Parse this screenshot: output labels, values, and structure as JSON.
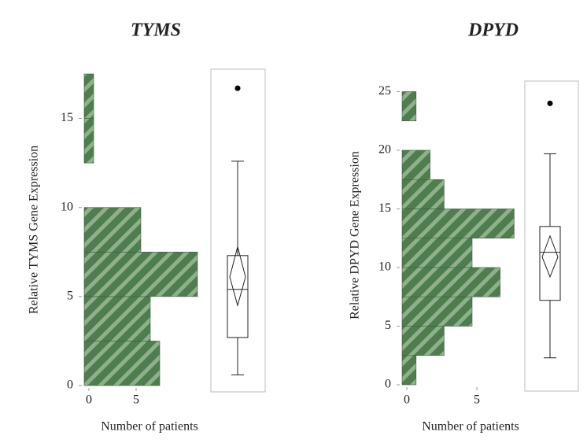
{
  "chart_data": [
    {
      "type": "histogram",
      "title": "TYMS",
      "xlabel": "Number of patients",
      "ylabel": "Relative TYMS Gene Expression",
      "color": "#4e7d4e",
      "bins": [
        0,
        2.5,
        5,
        7.5,
        10,
        12.5,
        15,
        17.5
      ],
      "values": [
        8,
        7,
        12,
        6,
        0,
        1,
        1
      ],
      "xlim": [
        0,
        13
      ],
      "xticks": [
        0,
        5
      ],
      "ylim": [
        0,
        17.5
      ],
      "yticks": [
        0,
        5,
        10,
        15
      ],
      "box": {
        "whislo": 0.6,
        "q1": 2.7,
        "median": 5.4,
        "q3": 7.3,
        "whishi": 12.6,
        "fliers": [
          16.7
        ],
        "mean": 6.1,
        "ci_low": 4.5,
        "ci_high": 7.8
      }
    },
    {
      "type": "histogram",
      "title": "DPYD",
      "xlabel": "Number of patients",
      "ylabel": "Relative DPYD Gene Expression",
      "color": "#4e7d4e",
      "bins": [
        0,
        2.5,
        5,
        7.5,
        10,
        12.5,
        15,
        17.5,
        20,
        22.5,
        25
      ],
      "values": [
        1,
        3,
        5,
        7,
        5,
        8,
        3,
        2,
        0,
        1
      ],
      "xlim": [
        0,
        8.5
      ],
      "xticks": [
        0,
        5
      ],
      "ylim": [
        0,
        25.5
      ],
      "yticks": [
        0,
        5,
        10,
        15,
        20,
        25
      ],
      "box": {
        "whislo": 2.3,
        "q1": 7.2,
        "median": 11.3,
        "q3": 13.5,
        "whishi": 19.7,
        "fliers": [
          24
        ],
        "mean": 10.9,
        "ci_low": 9.2,
        "ci_high": 12.7
      }
    }
  ]
}
